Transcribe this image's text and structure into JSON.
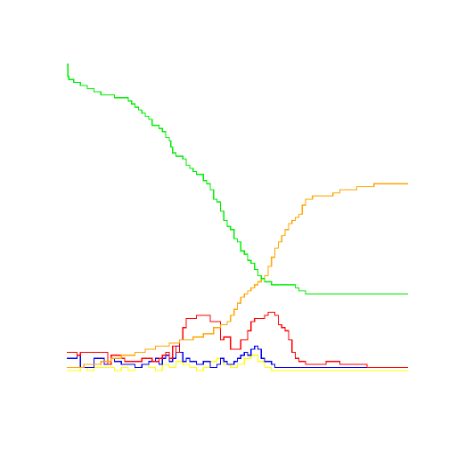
{
  "chart_data": {
    "type": "line",
    "step": true,
    "title": "",
    "xlabel": "",
    "ylabel": "",
    "axes_visible": false,
    "grid": false,
    "legend": "none",
    "xlim": [
      0,
      100
    ],
    "ylim": [
      0,
      100
    ],
    "series": [
      {
        "color": "#00ee00",
        "x": [
          0,
          0.3,
          0.6,
          2,
          4,
          6,
          8,
          10,
          14,
          18,
          19,
          20,
          21,
          22,
          23,
          24,
          25,
          27,
          28,
          29,
          30,
          30.5,
          31,
          32,
          34,
          35,
          36,
          37,
          38,
          40,
          41,
          42,
          43,
          44,
          45,
          46,
          47,
          48,
          49,
          50,
          51,
          52,
          53,
          54,
          55,
          56,
          57,
          58,
          60,
          66,
          67,
          68,
          69,
          70,
          72,
          100
        ],
        "values": [
          100,
          96,
          95,
          94,
          93,
          92,
          91,
          90,
          89,
          88,
          87,
          86,
          85,
          84,
          83,
          82,
          80,
          79,
          78,
          76,
          75,
          73,
          71,
          70,
          69,
          67,
          66,
          65,
          64,
          62,
          61,
          59,
          56,
          55,
          52,
          49,
          47,
          46,
          43,
          42,
          39,
          38,
          36,
          35,
          33,
          31,
          30,
          29,
          28,
          28,
          27,
          26,
          26,
          25,
          25,
          25
        ]
      },
      {
        "color": "#ffa500",
        "x": [
          0,
          5,
          10,
          13,
          16,
          20,
          23,
          26,
          30,
          33,
          37,
          40,
          43,
          45,
          47,
          48,
          49,
          50,
          51,
          52,
          53,
          54,
          55,
          56,
          57,
          58,
          59,
          60,
          61,
          62,
          63,
          64,
          65,
          66,
          67,
          68,
          69,
          70,
          72,
          78,
          80,
          85,
          88,
          90,
          100
        ],
        "values": [
          1,
          2,
          3,
          4,
          5,
          6,
          7,
          8,
          9,
          10,
          11,
          12,
          14,
          15,
          16,
          18,
          20,
          22,
          24,
          25,
          26,
          27,
          28,
          29,
          30,
          31,
          34,
          37,
          40,
          42,
          44,
          46,
          48,
          49,
          50,
          51,
          54,
          56,
          57,
          58,
          59,
          60,
          60,
          61,
          61
        ]
      },
      {
        "color": "#ff0000",
        "x": [
          0,
          3,
          4,
          8,
          12,
          13,
          16,
          17,
          20,
          22,
          25,
          27,
          28,
          29,
          30,
          31,
          32,
          33,
          34,
          35,
          36,
          38,
          40,
          42,
          44,
          45,
          46,
          48,
          50,
          51,
          52,
          53,
          54,
          55,
          56,
          57,
          58,
          59,
          60,
          61,
          62,
          63,
          64,
          65,
          66,
          67,
          68,
          69,
          70,
          72,
          76,
          80,
          88,
          100
        ],
        "values": [
          6,
          5,
          6,
          6,
          2,
          5,
          4,
          3,
          3,
          4,
          3,
          4,
          5,
          6,
          4,
          8,
          6,
          10,
          14,
          17,
          17,
          18,
          18,
          16,
          16,
          10,
          11,
          7,
          7,
          10,
          10,
          13,
          16,
          17,
          17,
          17,
          18,
          19,
          19,
          18,
          15,
          14,
          13,
          10,
          6,
          4,
          3,
          3,
          2,
          2,
          3,
          2,
          1,
          1
        ],
        "line_width": 1.3
      },
      {
        "color": "#0000ee",
        "x": [
          0,
          3,
          4,
          6,
          8,
          11,
          12,
          13,
          14,
          16,
          18,
          20,
          22,
          24,
          25,
          26,
          27,
          28,
          29,
          30,
          31,
          32,
          33,
          34,
          35,
          36,
          38,
          40,
          42,
          44,
          45,
          46,
          47,
          48,
          49,
          50,
          51,
          52,
          53,
          54,
          55,
          56,
          57,
          58,
          59,
          60,
          61,
          62,
          63,
          64,
          66,
          68,
          70,
          72,
          74,
          76,
          80,
          100
        ],
        "values": [
          4,
          5,
          1,
          1,
          4,
          2,
          2,
          4,
          3,
          2,
          2,
          1,
          2,
          3,
          3,
          4,
          2,
          4,
          5,
          3,
          4,
          8,
          6,
          3,
          4,
          3,
          2,
          3,
          1,
          2,
          4,
          3,
          2,
          2,
          3,
          4,
          5,
          6,
          5,
          7,
          8,
          7,
          4,
          3,
          3,
          2,
          1,
          1,
          1,
          1,
          1,
          1,
          1,
          1,
          1,
          1,
          1,
          1
        ]
      },
      {
        "color": "#ffff00",
        "x": [
          0,
          4,
          6,
          8,
          10,
          14,
          16,
          18,
          20,
          22,
          24,
          26,
          28,
          30,
          32,
          34,
          36,
          38,
          40,
          42,
          44,
          46,
          48,
          50,
          52,
          54,
          56,
          58,
          60,
          62,
          64,
          66,
          68,
          70,
          72,
          74,
          100
        ],
        "values": [
          0,
          1,
          0,
          1,
          1,
          0,
          1,
          0,
          1,
          2,
          1,
          0,
          2,
          1,
          3,
          2,
          1,
          0,
          1,
          3,
          4,
          2,
          1,
          2,
          4,
          5,
          3,
          1,
          0,
          0,
          0,
          0,
          0,
          0,
          0,
          0,
          0
        ]
      }
    ]
  }
}
